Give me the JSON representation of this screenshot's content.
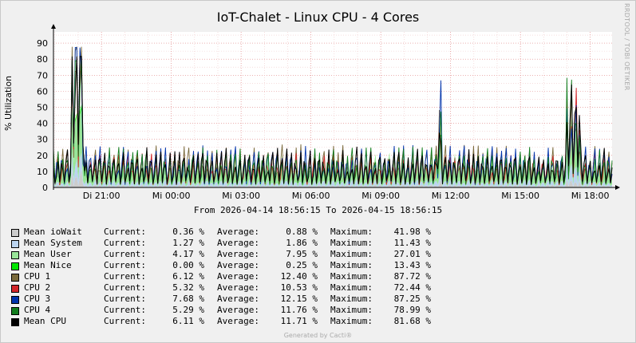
{
  "chart_data": {
    "type": "area",
    "title": "IoT-Chalet - Linux CPU - 4 Cores",
    "ylabel": "% Utilization",
    "ylim": [
      0,
      97
    ],
    "yticks": [
      0,
      10,
      20,
      30,
      40,
      50,
      60,
      70,
      80,
      90
    ],
    "xticks": [
      "Di 21:00",
      "Mi 00:00",
      "Mi 03:00",
      "Mi 06:00",
      "Mi 09:00",
      "Mi 12:00",
      "Mi 15:00",
      "Mi 18:00"
    ],
    "x_range_text": "From 2026-04-14 18:56:15 To 2026-04-15 18:56:15",
    "grid": true,
    "series": [
      {
        "name": "Mean ioWait",
        "color": "#cccccc",
        "current": "0.36 %",
        "average": "0.88 %",
        "maximum": "41.98 %"
      },
      {
        "name": "Mean System",
        "color": "#bbd4f0",
        "current": "1.27 %",
        "average": "1.86 %",
        "maximum": "11.43 %"
      },
      {
        "name": "Mean User",
        "color": "#99e699",
        "current": "4.17 %",
        "average": "7.95 %",
        "maximum": "27.01 %"
      },
      {
        "name": "Mean Nice",
        "color": "#00e600",
        "current": "0.00 %",
        "average": "0.25 %",
        "maximum": "13.43 %"
      },
      {
        "name": "CPU 1",
        "color": "#7a6a3c",
        "current": "6.12 %",
        "average": "12.40 %",
        "maximum": "87.72 %"
      },
      {
        "name": "CPU 2",
        "color": "#d2262a",
        "current": "5.32 %",
        "average": "10.53 %",
        "maximum": "72.44 %"
      },
      {
        "name": "CPU 3",
        "color": "#0033aa",
        "current": "7.68 %",
        "average": "12.15 %",
        "maximum": "87.25 %"
      },
      {
        "name": "CPU 4",
        "color": "#127d1e",
        "current": "5.29 %",
        "average": "11.76 %",
        "maximum": "78.99 %"
      },
      {
        "name": "Mean CPU",
        "color": "#000000",
        "current": "6.11 %",
        "average": "11.71 %",
        "maximum": "81.68 %"
      }
    ]
  },
  "legend_labels": {
    "current": "Current:",
    "average": "Average:",
    "maximum": "Maximum:"
  },
  "side_text": "RRDTOOL / TOBI OETIKER",
  "footer": "Generated by Cacti®"
}
